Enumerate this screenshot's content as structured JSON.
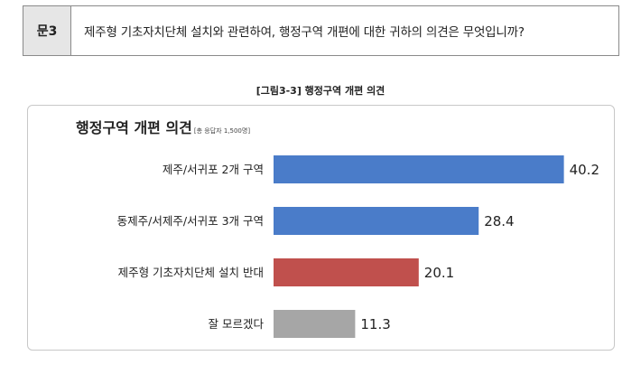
{
  "question": {
    "label": "문3",
    "text": "제주형 기초자치단체 설치와 관련하여, 행정구역 개편에 대한 귀하의 의견은 무엇입니까?"
  },
  "figure_caption": "[그림3-3] 행정구역 개편 의견",
  "chart_data": {
    "type": "bar",
    "orientation": "horizontal",
    "title": "행정구역 개편 의견",
    "subtitle": "[총 응답자 1,500명]",
    "categories": [
      "제주/서귀포 2개 구역",
      "동제주/서제주/서귀포 3개 구역",
      "제주형 기초자치단체 설치 반대",
      "잘 모르겠다"
    ],
    "values": [
      40.2,
      28.4,
      20.1,
      11.3
    ],
    "value_labels": [
      "40.2",
      "28.4",
      "20.1",
      "11.3"
    ],
    "colors": [
      "#4a7cc9",
      "#4a7cc9",
      "#c0504d",
      "#a6a6a6"
    ],
    "xlim": [
      0,
      45
    ],
    "grid": false,
    "legend": "none"
  }
}
